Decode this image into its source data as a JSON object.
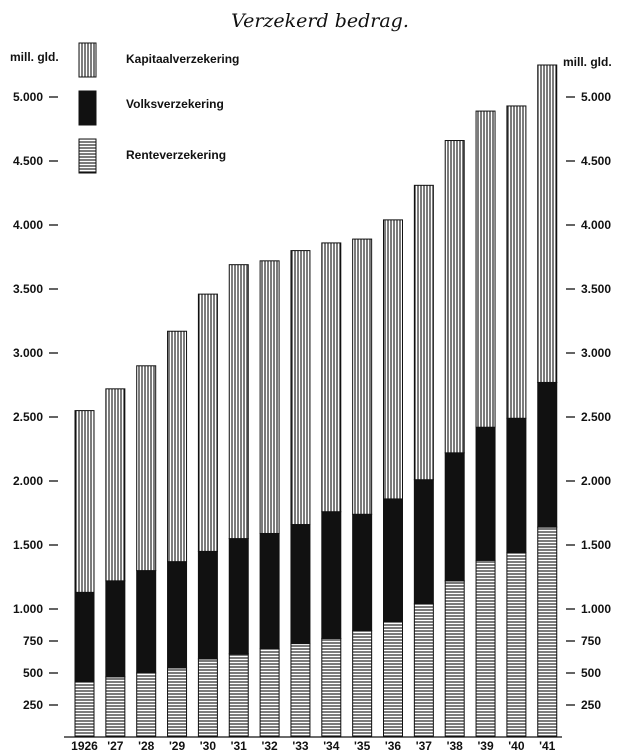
{
  "chart_data": {
    "type": "bar",
    "stacked": true,
    "title": "Verzekerd bedrag.",
    "unit_left": "mill. gld.",
    "unit_right": "mill. gld.",
    "categories": [
      "1926",
      "'27",
      "'28",
      "'29",
      "'30",
      "'31",
      "'32",
      "'33",
      "'34",
      "'35",
      "'36",
      "'37",
      "'38",
      "'39",
      "'40",
      "'41"
    ],
    "series": [
      {
        "name": "Renteverzekering",
        "pattern": "horizontal-lines",
        "values": [
          430,
          470,
          500,
          540,
          610,
          650,
          690,
          730,
          770,
          830,
          900,
          1040,
          1220,
          1380,
          1440,
          1640
        ]
      },
      {
        "name": "Volksverzekering",
        "pattern": "solid-black",
        "values": [
          700,
          750,
          800,
          830,
          840,
          900,
          900,
          930,
          990,
          910,
          960,
          970,
          1000,
          1040,
          1050,
          1130
        ]
      },
      {
        "name": "Kapitaalverzekering",
        "pattern": "vertical-lines",
        "values": [
          1420,
          1500,
          1600,
          1800,
          2010,
          2140,
          2130,
          2140,
          2100,
          2150,
          2180,
          2300,
          2440,
          2470,
          2440,
          2480
        ]
      }
    ],
    "y_ticks": [
      {
        "value": 250,
        "label": "250"
      },
      {
        "value": 500,
        "label": "500"
      },
      {
        "value": 750,
        "label": "750"
      },
      {
        "value": 1000,
        "label": "1.000"
      },
      {
        "value": 1500,
        "label": "1.500"
      },
      {
        "value": 2000,
        "label": "2.000"
      },
      {
        "value": 2500,
        "label": "2.500"
      },
      {
        "value": 3000,
        "label": "3.000"
      },
      {
        "value": 3500,
        "label": "3.500"
      },
      {
        "value": 4000,
        "label": "4.000"
      },
      {
        "value": 4500,
        "label": "4.500"
      },
      {
        "value": 5000,
        "label": "5.000"
      }
    ],
    "ylim": [
      0,
      5250
    ],
    "grid": false,
    "legend_position": "top-left",
    "colors": {
      "ink": "#111111",
      "paper": "#ffffff"
    }
  }
}
